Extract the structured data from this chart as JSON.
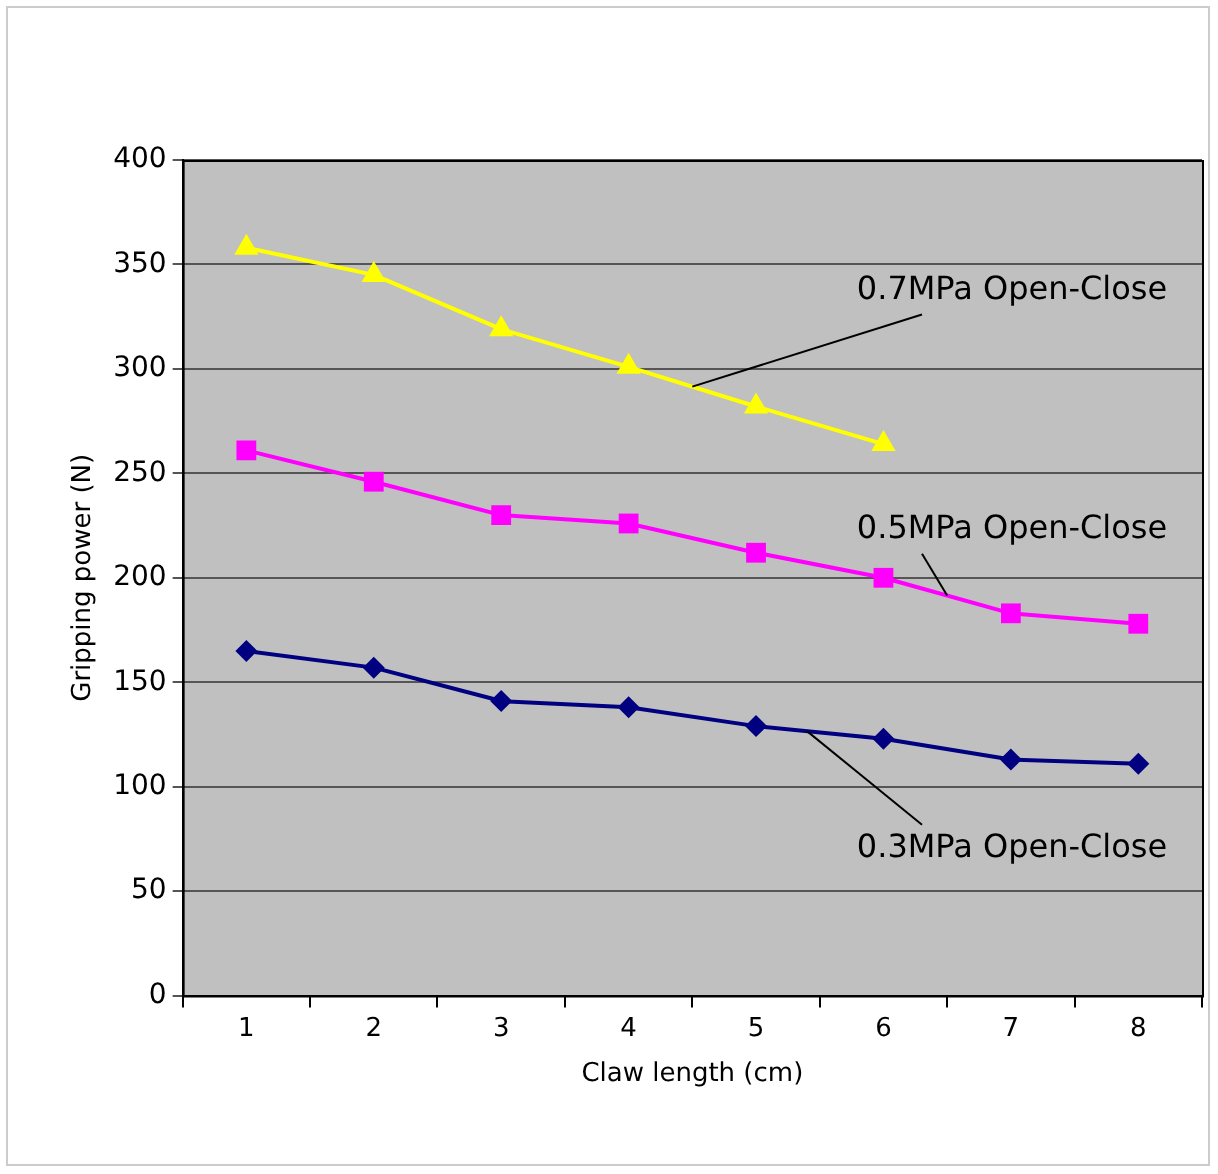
{
  "chart_data": {
    "type": "line",
    "xlabel": "Claw length (cm)",
    "ylabel": "Gripping power (N)",
    "categories": [
      "1",
      "2",
      "3",
      "4",
      "5",
      "6",
      "7",
      "8"
    ],
    "series": [
      {
        "name": "0.7MPa Open-Close",
        "color": "#ffff00",
        "marker": "triangle",
        "values": [
          358,
          345,
          319,
          301,
          282,
          264,
          null,
          null
        ]
      },
      {
        "name": "0.5MPa Open-Close",
        "color": "#ff00ff",
        "marker": "square",
        "values": [
          261,
          246,
          230,
          226,
          212,
          200,
          183,
          178
        ]
      },
      {
        "name": "0.3MPa Open-Close",
        "color": "#000080",
        "marker": "diamond",
        "values": [
          165,
          157,
          141,
          138,
          129,
          123,
          113,
          111
        ]
      }
    ],
    "ylim": [
      0,
      400
    ],
    "yticks": [
      0,
      50,
      100,
      150,
      200,
      250,
      300,
      350,
      400
    ],
    "grid": "y",
    "legend": false
  }
}
